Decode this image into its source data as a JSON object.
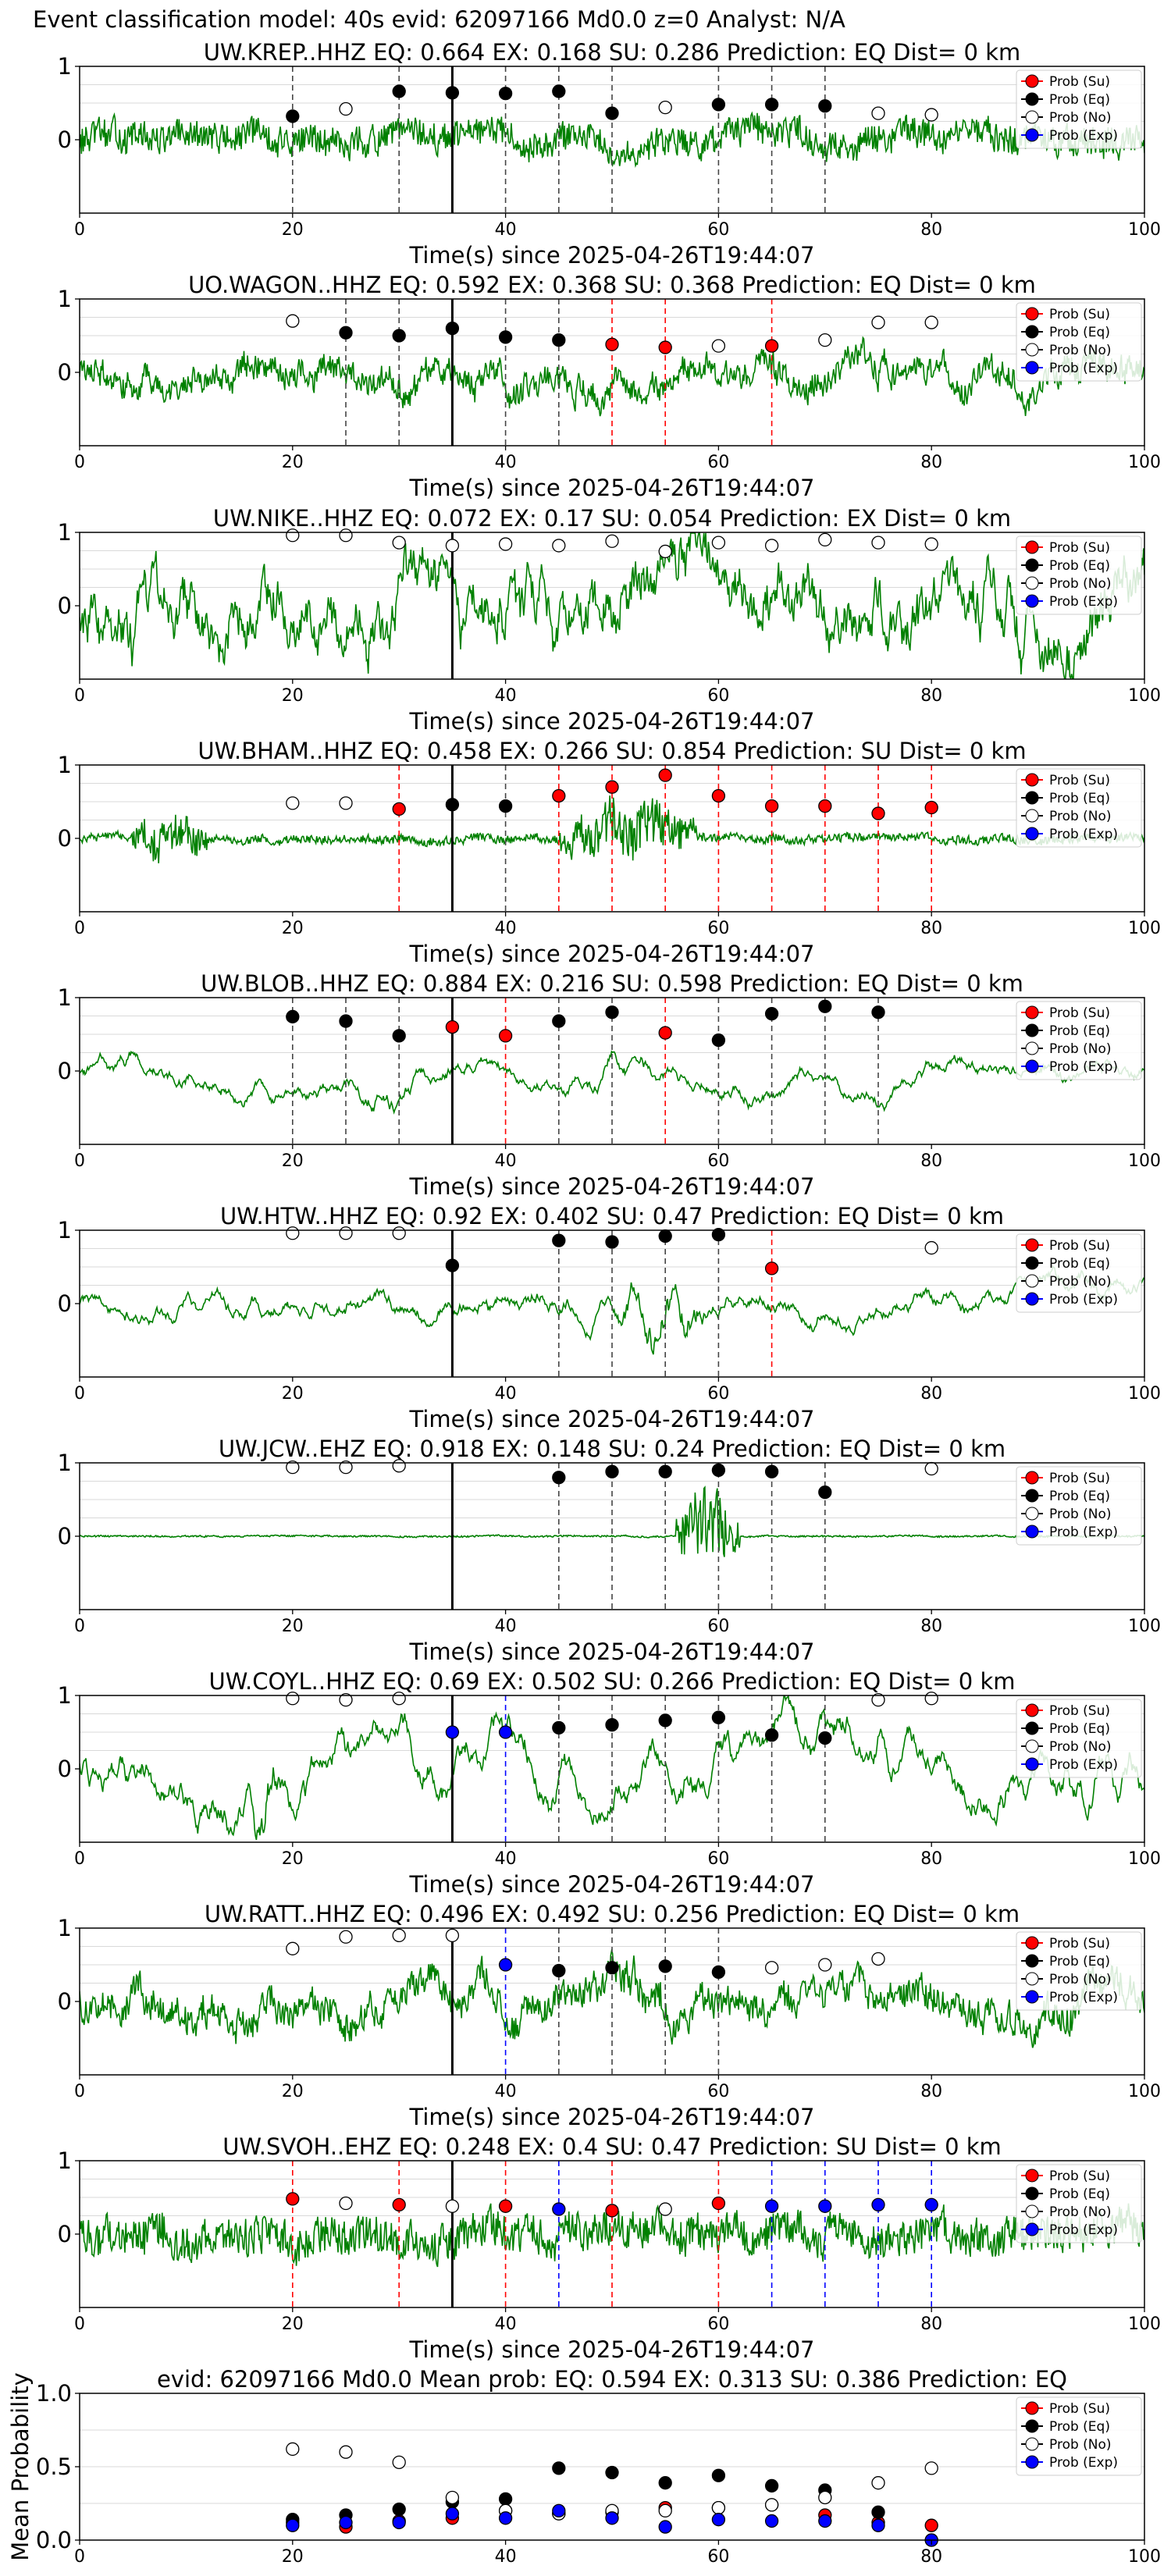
{
  "suptitle": "Event classification model: 40s evid: 62097166 Md0.0 z=0 Analyst: N/A",
  "colors": {
    "su": "#ff0000",
    "eq": "#000000",
    "no": "#ffffff",
    "exp": "#0000ff",
    "trace": "#008000",
    "grid": "#d9d9d9"
  },
  "legend": [
    "Prob (Su)",
    "Prob (Eq)",
    "Prob (No)",
    "Prob (Exp)"
  ],
  "chart_data": [
    {
      "type": "line",
      "station": "UW.KREP..HHZ",
      "title": "UW.KREP..HHZ   EQ: 0.664  EX: 0.168  SU: 0.286   Prediction: EQ    Dist= 0 km",
      "xlabel": "Time(s) since 2025-04-26T19:44:07",
      "ylabel": "",
      "xlim": [
        0,
        100
      ],
      "ylim": [
        -1,
        1
      ],
      "xticks": [
        0,
        20,
        40,
        60,
        80,
        100
      ],
      "yticks": [
        0,
        1
      ],
      "amp": 0.28,
      "trace_style": "hf",
      "burst": null,
      "pick": 35,
      "legend_position": "right",
      "grid": true,
      "points": [
        [
          20,
          "eq",
          0.32
        ],
        [
          25,
          "no",
          0.42
        ],
        [
          30,
          "eq",
          0.66
        ],
        [
          35,
          "eq",
          0.64
        ],
        [
          40,
          "eq",
          0.63
        ],
        [
          45,
          "eq",
          0.66
        ],
        [
          50,
          "eq",
          0.36
        ],
        [
          55,
          "no",
          0.44
        ],
        [
          60,
          "eq",
          0.48
        ],
        [
          65,
          "eq",
          0.48
        ],
        [
          70,
          "eq",
          0.46
        ],
        [
          75,
          "no",
          0.36
        ],
        [
          80,
          "no",
          0.34
        ]
      ]
    },
    {
      "type": "line",
      "station": "UO.WAGON..HHZ",
      "title": "UO.WAGON..HHZ   EQ: 0.592  EX: 0.368  SU: 0.368   Prediction: EQ    Dist= 0 km",
      "xlabel": "Time(s) since 2025-04-26T19:44:07",
      "ylabel": "",
      "xlim": [
        0,
        100
      ],
      "ylim": [
        -1,
        1
      ],
      "xticks": [
        0,
        20,
        40,
        60,
        80,
        100
      ],
      "yticks": [
        0,
        1
      ],
      "amp": 0.3,
      "trace_style": "mixed",
      "burst": null,
      "pick": 35,
      "legend_position": "right",
      "grid": true,
      "points": [
        [
          20,
          "no",
          0.7
        ],
        [
          25,
          "eq",
          0.54
        ],
        [
          30,
          "eq",
          0.5
        ],
        [
          35,
          "eq",
          0.6
        ],
        [
          40,
          "eq",
          0.48
        ],
        [
          45,
          "eq",
          0.44
        ],
        [
          50,
          "su",
          0.38
        ],
        [
          55,
          "su",
          0.34
        ],
        [
          60,
          "no",
          0.36
        ],
        [
          65,
          "su",
          0.36
        ],
        [
          70,
          "no",
          0.44
        ],
        [
          75,
          "no",
          0.68
        ],
        [
          80,
          "no",
          0.68
        ]
      ]
    },
    {
      "type": "line",
      "station": "UW.NIKE..HHZ",
      "title": "UW.NIKE..HHZ   EQ: 0.072  EX: 0.17  SU: 0.054   Prediction: EX    Dist= 0 km",
      "xlabel": "Time(s) since 2025-04-26T19:44:07",
      "ylabel": "",
      "xlim": [
        0,
        100
      ],
      "ylim": [
        -1,
        1
      ],
      "xticks": [
        0,
        20,
        40,
        60,
        80,
        100
      ],
      "yticks": [
        0,
        1
      ],
      "amp": 0.55,
      "trace_style": "lf",
      "burst": null,
      "pick": 35,
      "legend_position": "right",
      "grid": true,
      "points": [
        [
          20,
          "no",
          0.96
        ],
        [
          25,
          "no",
          0.96
        ],
        [
          30,
          "no",
          0.86
        ],
        [
          35,
          "no",
          0.82
        ],
        [
          40,
          "no",
          0.84
        ],
        [
          45,
          "no",
          0.82
        ],
        [
          50,
          "no",
          0.88
        ],
        [
          55,
          "no",
          0.74
        ],
        [
          60,
          "no",
          0.86
        ],
        [
          65,
          "no",
          0.82
        ],
        [
          70,
          "no",
          0.9
        ],
        [
          75,
          "no",
          0.86
        ],
        [
          80,
          "no",
          0.84
        ]
      ]
    },
    {
      "type": "line",
      "station": "UW.BHAM..HHZ",
      "title": "UW.BHAM..HHZ   EQ: 0.458  EX: 0.266  SU: 0.854   Prediction: SU    Dist= 0 km",
      "xlabel": "Time(s) since 2025-04-26T19:44:07",
      "ylabel": "",
      "xlim": [
        0,
        100
      ],
      "ylim": [
        -1,
        1
      ],
      "xticks": [
        0,
        20,
        40,
        60,
        80,
        100
      ],
      "yticks": [
        0,
        1
      ],
      "amp": 0.08,
      "trace_style": "hf",
      "burst": [
        [
          5,
          12,
          0.5
        ],
        [
          45,
          58,
          0.6
        ]
      ],
      "pick": 35,
      "legend_position": "right",
      "grid": true,
      "points": [
        [
          20,
          "no",
          0.48
        ],
        [
          25,
          "no",
          0.48
        ],
        [
          30,
          "su",
          0.4
        ],
        [
          35,
          "eq",
          0.46
        ],
        [
          40,
          "eq",
          0.44
        ],
        [
          45,
          "su",
          0.58
        ],
        [
          50,
          "su",
          0.7
        ],
        [
          55,
          "su",
          0.86
        ],
        [
          60,
          "su",
          0.58
        ],
        [
          65,
          "su",
          0.44
        ],
        [
          70,
          "su",
          0.44
        ],
        [
          75,
          "su",
          0.34
        ],
        [
          80,
          "su",
          0.42
        ]
      ]
    },
    {
      "type": "line",
      "station": "UW.BLOB..HHZ",
      "title": "UW.BLOB..HHZ   EQ: 0.884  EX: 0.216  SU: 0.598   Prediction: EQ    Dist= 0 km",
      "xlabel": "Time(s) since 2025-04-26T19:44:07",
      "ylabel": "",
      "xlim": [
        0,
        100
      ],
      "ylim": [
        -1,
        1
      ],
      "xticks": [
        0,
        20,
        40,
        60,
        80,
        100
      ],
      "yticks": [
        0,
        1
      ],
      "amp": 0.2,
      "trace_style": "smooth",
      "burst": [
        [
          24,
          34,
          0.35
        ],
        [
          44,
          56,
          0.3
        ]
      ],
      "pick": 35,
      "legend_position": "right",
      "grid": true,
      "points": [
        [
          20,
          "eq",
          0.74
        ],
        [
          25,
          "eq",
          0.68
        ],
        [
          30,
          "eq",
          0.48
        ],
        [
          35,
          "su",
          0.6
        ],
        [
          40,
          "su",
          0.48
        ],
        [
          45,
          "eq",
          0.68
        ],
        [
          50,
          "eq",
          0.8
        ],
        [
          55,
          "su",
          0.52
        ],
        [
          60,
          "eq",
          0.42
        ],
        [
          65,
          "eq",
          0.78
        ],
        [
          70,
          "eq",
          0.88
        ],
        [
          75,
          "eq",
          0.8
        ]
      ]
    },
    {
      "type": "line",
      "station": "UW.HTW..HHZ",
      "title": "UW.HTW..HHZ   EQ: 0.92  EX: 0.402  SU: 0.47   Prediction: EQ    Dist= 0 km",
      "xlabel": "Time(s) since 2025-04-26T19:44:07",
      "ylabel": "",
      "xlim": [
        0,
        100
      ],
      "ylim": [
        -1,
        1
      ],
      "xticks": [
        0,
        20,
        40,
        60,
        80,
        100
      ],
      "yticks": [
        0,
        1
      ],
      "amp": 0.22,
      "trace_style": "smooth",
      "burst": [
        [
          50,
          60,
          0.7
        ]
      ],
      "pick": 35,
      "legend_position": "right",
      "grid": true,
      "points": [
        [
          20,
          "no",
          0.96
        ],
        [
          25,
          "no",
          0.96
        ],
        [
          30,
          "no",
          0.96
        ],
        [
          35,
          "eq",
          0.52
        ],
        [
          45,
          "eq",
          0.86
        ],
        [
          50,
          "eq",
          0.84
        ],
        [
          55,
          "eq",
          0.92
        ],
        [
          60,
          "eq",
          0.94
        ],
        [
          65,
          "su",
          0.48
        ],
        [
          80,
          "no",
          0.76
        ]
      ]
    },
    {
      "type": "line",
      "station": "UW.JCW..EHZ",
      "title": "UW.JCW..EHZ   EQ: 0.918  EX: 0.148  SU: 0.24   Prediction: EQ    Dist= 0 km",
      "xlabel": "Time(s) since 2025-04-26T19:44:07",
      "ylabel": "",
      "xlim": [
        0,
        100
      ],
      "ylim": [
        -1,
        1
      ],
      "xticks": [
        0,
        20,
        40,
        60,
        80,
        100
      ],
      "yticks": [
        0,
        1
      ],
      "amp": 0.015,
      "trace_style": "hf",
      "burst": [
        [
          56,
          62,
          0.8
        ]
      ],
      "pick": 35,
      "legend_position": "right",
      "grid": true,
      "points": [
        [
          20,
          "no",
          0.94
        ],
        [
          25,
          "no",
          0.94
        ],
        [
          30,
          "no",
          0.96
        ],
        [
          45,
          "eq",
          0.8
        ],
        [
          50,
          "eq",
          0.88
        ],
        [
          55,
          "eq",
          0.88
        ],
        [
          60,
          "eq",
          0.9
        ],
        [
          65,
          "eq",
          0.88
        ],
        [
          70,
          "eq",
          0.6
        ],
        [
          80,
          "no",
          0.92
        ]
      ]
    },
    {
      "type": "line",
      "station": "UW.COYL..HHZ",
      "title": "UW.COYL..HHZ   EQ: 0.69  EX: 0.502  SU: 0.266   Prediction: EQ    Dist= 0 km",
      "xlabel": "Time(s) since 2025-04-26T19:44:07",
      "ylabel": "",
      "xlim": [
        0,
        100
      ],
      "ylim": [
        -1,
        1
      ],
      "xticks": [
        0,
        20,
        40,
        60,
        80,
        100
      ],
      "yticks": [
        0,
        1
      ],
      "amp": 0.45,
      "trace_style": "smooth",
      "burst": [
        [
          15,
          20,
          0.8
        ]
      ],
      "pick": 35,
      "legend_position": "right",
      "grid": true,
      "points": [
        [
          20,
          "no",
          0.96
        ],
        [
          25,
          "no",
          0.94
        ],
        [
          30,
          "no",
          0.96
        ],
        [
          35,
          "exp",
          0.5
        ],
        [
          40,
          "exp",
          0.5
        ],
        [
          45,
          "eq",
          0.56
        ],
        [
          50,
          "eq",
          0.6
        ],
        [
          55,
          "eq",
          0.66
        ],
        [
          60,
          "eq",
          0.7
        ],
        [
          65,
          "eq",
          0.46
        ],
        [
          70,
          "eq",
          0.42
        ],
        [
          75,
          "no",
          0.94
        ],
        [
          80,
          "no",
          0.96
        ]
      ]
    },
    {
      "type": "line",
      "station": "UW.RATT..HHZ",
      "title": "UW.RATT..HHZ   EQ: 0.496  EX: 0.492  SU: 0.256   Prediction: EQ    Dist= 0 km",
      "xlabel": "Time(s) since 2025-04-26T19:44:07",
      "ylabel": "",
      "xlim": [
        0,
        100
      ],
      "ylim": [
        -1,
        1
      ],
      "xticks": [
        0,
        20,
        40,
        60,
        80,
        100
      ],
      "yticks": [
        0,
        1
      ],
      "amp": 0.35,
      "trace_style": "mixed",
      "burst": [
        [
          49,
          55,
          0.5
        ]
      ],
      "pick": 35,
      "legend_position": "right",
      "grid": true,
      "points": [
        [
          20,
          "no",
          0.72
        ],
        [
          25,
          "no",
          0.88
        ],
        [
          30,
          "no",
          0.9
        ],
        [
          35,
          "no",
          0.9
        ],
        [
          40,
          "exp",
          0.5
        ],
        [
          45,
          "eq",
          0.42
        ],
        [
          50,
          "eq",
          0.46
        ],
        [
          55,
          "eq",
          0.48
        ],
        [
          60,
          "eq",
          0.4
        ],
        [
          65,
          "no",
          0.46
        ],
        [
          70,
          "no",
          0.5
        ],
        [
          75,
          "no",
          0.58
        ]
      ]
    },
    {
      "type": "line",
      "station": "UW.SVOH..EHZ",
      "title": "UW.SVOH..EHZ   EQ: 0.248  EX: 0.4  SU: 0.47   Prediction: SU    Dist= 0 km",
      "xlabel": "Time(s) since 2025-04-26T19:44:07",
      "ylabel": "",
      "xlim": [
        0,
        100
      ],
      "ylim": [
        -1,
        1
      ],
      "xticks": [
        0,
        20,
        40,
        60,
        80,
        100
      ],
      "yticks": [
        0,
        1
      ],
      "amp": 0.35,
      "trace_style": "hf",
      "burst": null,
      "pick": 35,
      "legend_position": "right",
      "grid": true,
      "points": [
        [
          20,
          "su",
          0.48
        ],
        [
          25,
          "no",
          0.42
        ],
        [
          30,
          "su",
          0.4
        ],
        [
          35,
          "no",
          0.38
        ],
        [
          40,
          "su",
          0.38
        ],
        [
          45,
          "exp",
          0.34
        ],
        [
          50,
          "su",
          0.32
        ],
        [
          55,
          "no",
          0.34
        ],
        [
          60,
          "su",
          0.42
        ],
        [
          65,
          "exp",
          0.38
        ],
        [
          70,
          "exp",
          0.38
        ],
        [
          75,
          "exp",
          0.4
        ],
        [
          80,
          "exp",
          0.4
        ]
      ]
    },
    {
      "type": "scatter",
      "station": "mean",
      "title": "evid: 62097166  Md0.0   Mean prob:   EQ: 0.594  EX: 0.313  SU: 0.386   Prediction: EQ",
      "xlabel": "",
      "ylabel": "Mean Probability",
      "xlim": [
        0,
        100
      ],
      "ylim": [
        0,
        1
      ],
      "xticks": [
        0,
        20,
        40,
        60,
        80,
        100
      ],
      "yticks": [
        0,
        0.5,
        1
      ],
      "ytick_labels": [
        "0.0",
        "0.5",
        "1.0"
      ],
      "legend_position": "right",
      "grid": true,
      "series": [
        {
          "name": "Prob (Su)",
          "cls": "su",
          "x": [
            20,
            25,
            30,
            35,
            40,
            45,
            50,
            55,
            60,
            65,
            70,
            75,
            80
          ],
          "y": [
            0.12,
            0.09,
            0.13,
            0.15,
            0.2,
            0.18,
            0.19,
            0.22,
            0.22,
            0.24,
            0.17,
            0.12,
            0.1
          ]
        },
        {
          "name": "Prob (Eq)",
          "cls": "eq",
          "x": [
            20,
            25,
            30,
            35,
            40,
            45,
            50,
            55,
            60,
            65,
            70,
            75,
            80
          ],
          "y": [
            0.14,
            0.17,
            0.21,
            0.26,
            0.28,
            0.49,
            0.46,
            0.39,
            0.44,
            0.37,
            0.34,
            0.19,
            0.0
          ]
        },
        {
          "name": "Prob (No)",
          "cls": "no",
          "x": [
            20,
            25,
            30,
            35,
            40,
            45,
            50,
            55,
            60,
            65,
            70,
            75,
            80
          ],
          "y": [
            0.62,
            0.6,
            0.53,
            0.29,
            0.2,
            0.18,
            0.2,
            0.2,
            0.22,
            0.24,
            0.29,
            0.39,
            0.49
          ]
        },
        {
          "name": "Prob (Exp)",
          "cls": "exp",
          "x": [
            20,
            25,
            30,
            35,
            40,
            45,
            50,
            55,
            60,
            65,
            70,
            75,
            80
          ],
          "y": [
            0.1,
            0.12,
            0.12,
            0.18,
            0.15,
            0.2,
            0.15,
            0.09,
            0.14,
            0.13,
            0.13,
            0.1,
            0.0
          ]
        }
      ]
    }
  ]
}
